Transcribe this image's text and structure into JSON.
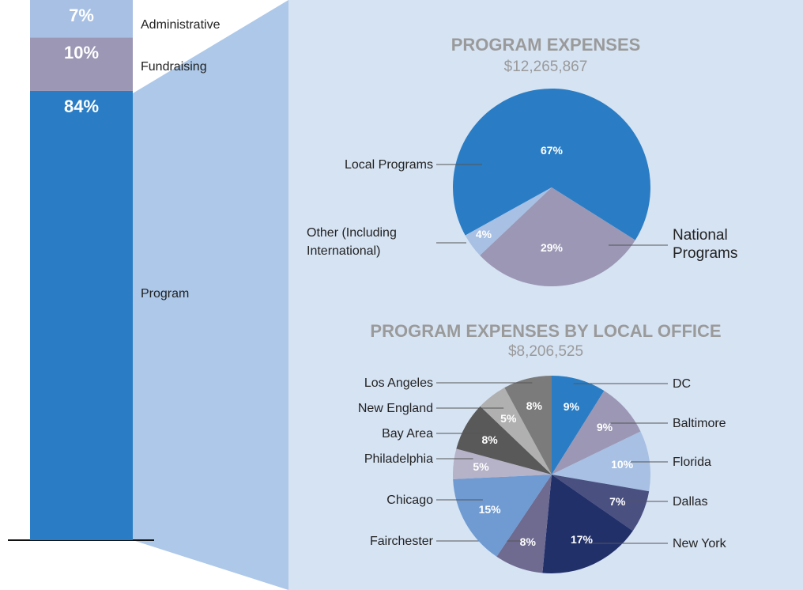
{
  "chart_data": [
    {
      "type": "stacked_bar",
      "series": [
        {
          "name": "Program",
          "color": "#2a7dc4",
          "values": [
            84
          ],
          "value_labels": [
            "84%"
          ]
        },
        {
          "name": "Fundraising",
          "color": "#9b97b5",
          "values": [
            10
          ],
          "value_labels": [
            "10%"
          ]
        },
        {
          "name": "Administrative",
          "color": "#a7c0e3",
          "values": [
            7
          ],
          "value_labels": [
            "7%"
          ]
        }
      ]
    },
    {
      "type": "pie",
      "title": "PROGRAM EXPENSES",
      "subtitle": "$12,265,867",
      "labels": [
        "Local Programs",
        "National Programs",
        "Other (Including International)"
      ],
      "values": [
        67,
        29,
        4
      ],
      "value_labels": [
        "67%",
        "29%",
        "4%"
      ],
      "colors": [
        "#2a7dc4",
        "#9b97b5",
        "#a7c0e3"
      ]
    },
    {
      "type": "pie",
      "title": "PROGRAM EXPENSES BY LOCAL OFFICE",
      "subtitle": "$8,206,525",
      "labels": [
        "DC",
        "Baltimore",
        "Florida",
        "Dallas",
        "New York",
        "Fairchester",
        "Chicago",
        "Philadelphia",
        "Bay Area",
        "New England",
        "Los Angeles"
      ],
      "values": [
        9,
        9,
        10,
        7,
        17,
        8,
        15,
        5,
        8,
        5,
        8
      ],
      "value_labels": [
        "9%",
        "9%",
        "10%",
        "7%",
        "17%",
        "8%",
        "15%",
        "5%",
        "8%",
        "5%",
        "8%"
      ],
      "colors": [
        "#2a7dc4",
        "#9b97b5",
        "#a7c0e3",
        "#4a5080",
        "#22306a",
        "#6e6a90",
        "#6f9bd2",
        "#b6b2c8",
        "#595959",
        "#b0b0b0",
        "#7b7b7b"
      ]
    }
  ]
}
